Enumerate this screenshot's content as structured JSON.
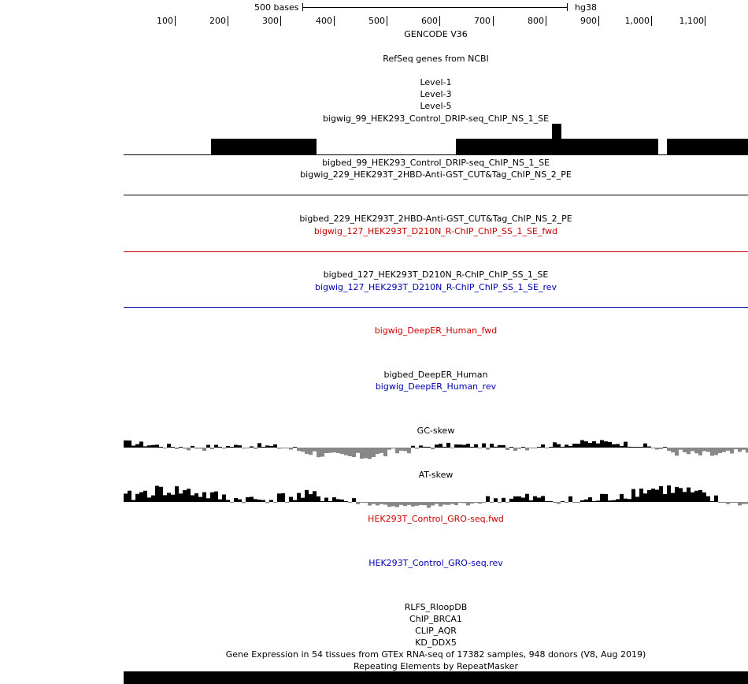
{
  "ruler": {
    "scale_label": "500 bases",
    "assembly": "hg38",
    "ticks": [
      "100",
      "200",
      "300",
      "400",
      "500",
      "600",
      "700",
      "800",
      "900",
      "1,000",
      "1,100"
    ]
  },
  "tracks": {
    "gencode": "GENCODE V36",
    "refseq": "RefSeq genes from NCBI",
    "level1": "Level-1",
    "level3": "Level-3",
    "level5": "Level-5",
    "bigwig_99": "bigwig_99_HEK293_Control_DRIP-seq_ChIP_NS_1_SE",
    "bigbed_99": "bigbed_99_HEK293_Control_DRIP-seq_ChIP_NS_1_SE",
    "bigwig_229": "bigwig_229_HEK293T_2HBD-Anti-GST_CUT&Tag_ChIP_NS_2_PE",
    "bigbed_229": "bigbed_229_HEK293T_2HBD-Anti-GST_CUT&Tag_ChIP_NS_2_PE",
    "bigwig_127_fwd": "bigwig_127_HEK293T_D210N_R-ChIP_ChIP_SS_1_SE_fwd",
    "bigbed_127": "bigbed_127_HEK293T_D210N_R-ChIP_ChIP_SS_1_SE",
    "bigwig_127_rev": "bigwig_127_HEK293T_D210N_R-ChIP_ChIP_SS_1_SE_rev",
    "deeper_fwd": "bigwig_DeepER_Human_fwd",
    "deeper_bigbed": "bigbed_DeepER_Human",
    "deeper_rev": "bigwig_DeepER_Human_rev",
    "gc_skew": "GC-skew",
    "at_skew": "AT-skew",
    "gro_fwd": "HEK293T_Control_GRO-seq.fwd",
    "gro_rev": "HEK293T_Control_GRO-seq.rev",
    "rlfs": "RLFS_RloopDB",
    "chip_brca1": "ChIP_BRCA1",
    "clip_aqr": "CLIP_AQR",
    "kd_ddx5": "KD_DDX5",
    "gtex": "Gene Expression in 54 tissues from GTEx RNA-seq of 17382 samples, 948 donors (V8, Aug 2019)",
    "repeatmasker": "Repeating Elements by RepeatMasker"
  },
  "colors": {
    "fwd": "#cc0000",
    "rev": "#0000b3",
    "signal": "#000000",
    "negative": "#888888"
  }
}
